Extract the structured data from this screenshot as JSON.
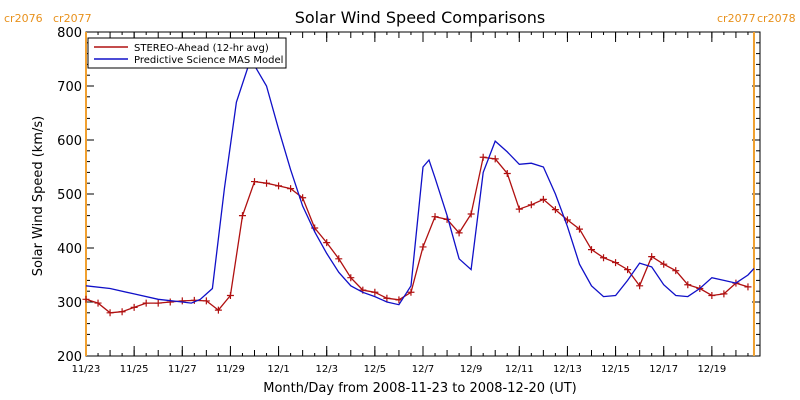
{
  "chart_data": {
    "type": "line",
    "title": "Solar Wind Speed Comparisons",
    "xlabel": "Month/Day from 2008-11-23 to 2008-12-20 (UT)",
    "ylabel": "Solar Wind Speed (km/s)",
    "xlim": [
      "2008-11-23",
      "2008-12-21"
    ],
    "ylim": [
      200,
      800
    ],
    "yticks": [
      200,
      300,
      400,
      500,
      600,
      700,
      800
    ],
    "xtick_labels": [
      "11/23",
      "11/25",
      "11/27",
      "11/29",
      "12/1",
      "12/3",
      "12/5",
      "12/7",
      "12/9",
      "12/11",
      "12/13",
      "12/15",
      "12/17",
      "12/19"
    ],
    "xtick_dates": [
      "2008-11-23",
      "2008-11-25",
      "2008-11-27",
      "2008-11-29",
      "2008-12-01",
      "2008-12-03",
      "2008-12-05",
      "2008-12-07",
      "2008-12-09",
      "2008-12-11",
      "2008-12-13",
      "2008-12-15",
      "2008-12-17",
      "2008-12-19"
    ],
    "legend_position": "top-left",
    "carrington_rotations": [
      {
        "date": "2008-11-23",
        "label_left": "cr2076",
        "label_right": "cr2077",
        "color": "#f0a030"
      },
      {
        "date": "2008-12-20 18:00",
        "label_left": "cr2077",
        "label_right": "cr2078",
        "color": "#f0a030"
      }
    ],
    "series": [
      {
        "name": "STEREO-Ahead (12-hr avg)",
        "color": "#b01010",
        "marker": "plus",
        "x": [
          "2008-11-23 00:00",
          "2008-11-23 12:00",
          "2008-11-24 00:00",
          "2008-11-24 12:00",
          "2008-11-25 00:00",
          "2008-11-25 12:00",
          "2008-11-26 00:00",
          "2008-11-26 12:00",
          "2008-11-27 00:00",
          "2008-11-27 12:00",
          "2008-11-28 00:00",
          "2008-11-28 12:00",
          "2008-11-29 00:00",
          "2008-11-29 12:00",
          "2008-11-30 00:00",
          "2008-11-30 12:00",
          "2008-12-01 00:00",
          "2008-12-01 12:00",
          "2008-12-02 00:00",
          "2008-12-02 12:00",
          "2008-12-03 00:00",
          "2008-12-03 12:00",
          "2008-12-04 00:00",
          "2008-12-04 12:00",
          "2008-12-05 00:00",
          "2008-12-05 12:00",
          "2008-12-06 00:00",
          "2008-12-06 12:00",
          "2008-12-07 00:00",
          "2008-12-07 12:00",
          "2008-12-08 00:00",
          "2008-12-08 12:00",
          "2008-12-09 00:00",
          "2008-12-09 12:00",
          "2008-12-10 00:00",
          "2008-12-10 12:00",
          "2008-12-11 00:00",
          "2008-12-11 12:00",
          "2008-12-12 00:00",
          "2008-12-12 12:00",
          "2008-12-13 00:00",
          "2008-12-13 12:00",
          "2008-12-14 00:00",
          "2008-12-14 12:00",
          "2008-12-15 00:00",
          "2008-12-15 12:00",
          "2008-12-16 00:00",
          "2008-12-16 12:00",
          "2008-12-17 00:00",
          "2008-12-17 12:00",
          "2008-12-18 00:00",
          "2008-12-18 12:00",
          "2008-12-19 00:00",
          "2008-12-19 12:00",
          "2008-12-20 00:00",
          "2008-12-20 12:00"
        ],
        "y": [
          305,
          298,
          280,
          282,
          290,
          298,
          298,
          300,
          302,
          303,
          302,
          285,
          312,
          460,
          523,
          520,
          515,
          510,
          493,
          437,
          410,
          380,
          345,
          322,
          318,
          307,
          304,
          318,
          402,
          458,
          453,
          428,
          463,
          568,
          565,
          538,
          472,
          480,
          490,
          471,
          452,
          435,
          397,
          382,
          373,
          360,
          330,
          384,
          370,
          358,
          332,
          325,
          312,
          315,
          335,
          328
        ]
      },
      {
        "name": "Predictive Science MAS Model",
        "color": "#1010c8",
        "marker": "none",
        "x": [
          "2008-11-23 00:00",
          "2008-11-24 00:00",
          "2008-11-25 00:00",
          "2008-11-26 00:00",
          "2008-11-27 00:00",
          "2008-11-27 09:00",
          "2008-11-27 18:00",
          "2008-11-28 06:00",
          "2008-11-28 18:00",
          "2008-11-29 06:00",
          "2008-11-29 18:00",
          "2008-11-30 00:00",
          "2008-11-30 12:00",
          "2008-12-01 00:00",
          "2008-12-01 12:00",
          "2008-12-02 00:00",
          "2008-12-02 12:00",
          "2008-12-03 00:00",
          "2008-12-03 12:00",
          "2008-12-04 00:00",
          "2008-12-04 12:00",
          "2008-12-05 00:00",
          "2008-12-05 12:00",
          "2008-12-06 00:00",
          "2008-12-06 12:00",
          "2008-12-07 00:00",
          "2008-12-07 06:00",
          "2008-12-07 12:00",
          "2008-12-08 00:00",
          "2008-12-08 12:00",
          "2008-12-09 00:00",
          "2008-12-09 12:00",
          "2008-12-10 00:00",
          "2008-12-10 12:00",
          "2008-12-11 00:00",
          "2008-12-11 12:00",
          "2008-12-12 00:00",
          "2008-12-12 12:00",
          "2008-12-13 00:00",
          "2008-12-13 12:00",
          "2008-12-14 00:00",
          "2008-12-14 12:00",
          "2008-12-15 00:00",
          "2008-12-15 12:00",
          "2008-12-16 00:00",
          "2008-12-16 12:00",
          "2008-12-17 00:00",
          "2008-12-17 12:00",
          "2008-12-18 00:00",
          "2008-12-18 12:00",
          "2008-12-19 00:00",
          "2008-12-19 12:00",
          "2008-12-20 00:00",
          "2008-12-20 12:00",
          "2008-12-20 18:00"
        ],
        "y": [
          330,
          325,
          315,
          305,
          300,
          298,
          305,
          325,
          510,
          670,
          738,
          738,
          700,
          620,
          545,
          478,
          430,
          390,
          355,
          330,
          318,
          310,
          300,
          295,
          330,
          550,
          563,
          530,
          460,
          380,
          360,
          540,
          598,
          578,
          555,
          557,
          550,
          500,
          440,
          370,
          330,
          310,
          312,
          340,
          372,
          365,
          332,
          312,
          310,
          325,
          345,
          340,
          335,
          350,
          362
        ]
      }
    ]
  }
}
